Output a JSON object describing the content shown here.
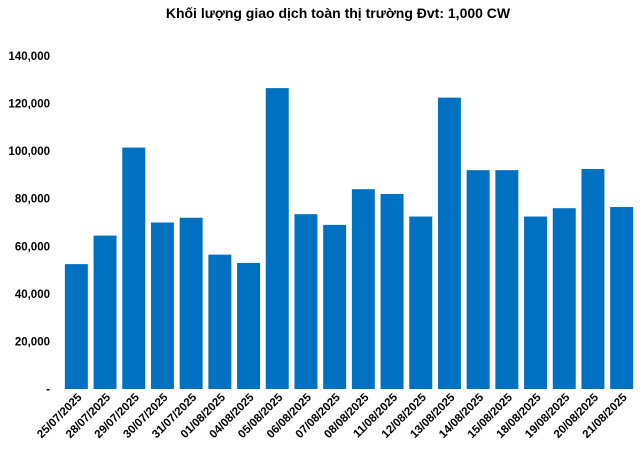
{
  "chart_data": {
    "type": "bar",
    "title": "Khối lượng giao dịch toàn thị trường Đvt: 1,000 CW",
    "xlabel": "",
    "ylabel": "",
    "categories": [
      "25/07/2025",
      "28/07/2025",
      "29/07/2025",
      "30/07/2025",
      "31/07/2025",
      "01/08/2025",
      "04/08/2025",
      "05/08/2025",
      "06/08/2025",
      "07/08/2025",
      "08/08/2025",
      "11/08/2025",
      "12/08/2025",
      "13/08/2025",
      "14/08/2025",
      "15/08/2025",
      "18/08/2025",
      "19/08/2025",
      "20/08/2025",
      "21/08/2025"
    ],
    "values": [
      52500,
      64500,
      101500,
      70000,
      72000,
      56500,
      53000,
      126500,
      73500,
      69000,
      84000,
      82000,
      72500,
      122500,
      92000,
      92000,
      72500,
      76000,
      92500,
      76500
    ],
    "ylim": [
      0,
      140000
    ],
    "yticks": [
      "-",
      "20,000",
      "40,000",
      "60,000",
      "80,000",
      "100,000",
      "120,000",
      "140,000"
    ],
    "grid": false,
    "legend": "none",
    "bar_color": "#0070C0"
  }
}
